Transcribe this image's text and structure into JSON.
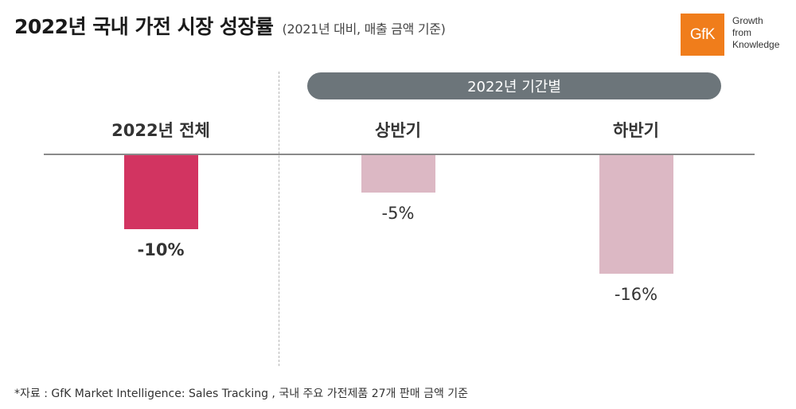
{
  "title": {
    "main": "2022년 국내 가전 시장 성장률",
    "sub": "(2021년 대비, 매출 금액 기준)"
  },
  "logo": {
    "brand": "GfK",
    "tagline": [
      "Growth",
      "from",
      "Knowledge"
    ],
    "color": "#f07d1b"
  },
  "period_header": "2022년 기간별",
  "footnote": "*자료 : GfK Market Intelligence: Sales Tracking , 국내 주요 가전제품 27개 판매 금액 기준",
  "colors": {
    "highlight": "#d23461",
    "muted": "#dcb8c4",
    "pill": "#6c757a",
    "baseline": "#8a8a8a"
  },
  "chart_data": {
    "type": "bar",
    "title": "2022년 국내 가전 시장 성장률",
    "subtitle": "(2021년 대비, 매출 금액 기준)",
    "categories": [
      "2022년 전체",
      "상반기",
      "하반기"
    ],
    "values": [
      -10,
      -5,
      -16
    ],
    "value_labels": [
      "-10%",
      "-5%",
      "-16%"
    ],
    "unit": "%",
    "group_labels": [
      "",
      "2022년 기간별",
      "2022년 기간별"
    ],
    "ylim": [
      -16,
      0
    ],
    "grid": false,
    "legend": "none"
  }
}
